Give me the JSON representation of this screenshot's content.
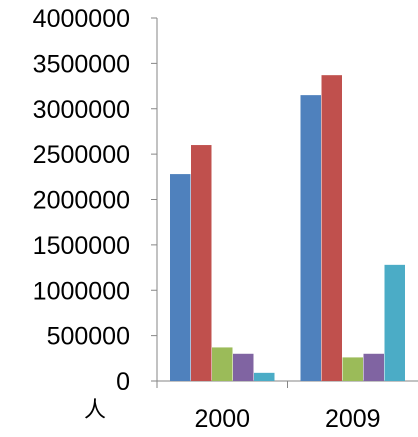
{
  "chart_data": {
    "type": "bar",
    "title": "",
    "xlabel": "",
    "ylabel": "",
    "unit_label": "人",
    "categories": [
      "2000",
      "2009"
    ],
    "ylim": [
      0,
      4000000
    ],
    "yticks": [
      0,
      500000,
      1000000,
      1500000,
      2000000,
      2500000,
      3000000,
      3500000,
      4000000
    ],
    "y_tick_labels": [
      "0",
      "500000",
      "1000000",
      "1500000",
      "2000000",
      "2500000",
      "3000000",
      "3500000",
      "4000000"
    ],
    "grid": false,
    "legend": "none",
    "series": [
      {
        "color": "#4F81BD",
        "values": [
          2280000,
          3150000
        ]
      },
      {
        "color": "#C0504D",
        "values": [
          2600000,
          3370000
        ]
      },
      {
        "color": "#9BBB59",
        "values": [
          370000,
          260000
        ]
      },
      {
        "color": "#8064A2",
        "values": [
          300000,
          300000
        ]
      },
      {
        "color": "#4BACC6",
        "values": [
          90000,
          1280000
        ]
      }
    ]
  }
}
